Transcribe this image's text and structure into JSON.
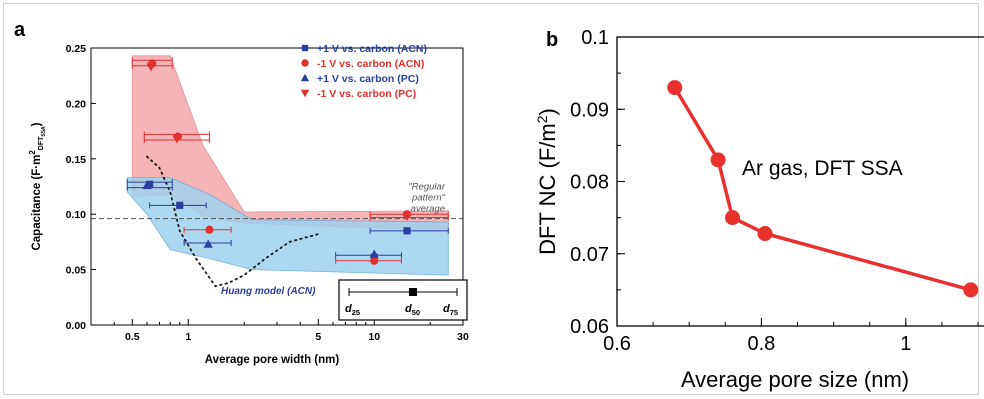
{
  "chart_data": [
    {
      "panel_label": "a",
      "type": "scatter",
      "xlabel": "Average pore width (nm)",
      "ylabel_main": "Capacitance (F·m",
      "ylabel_sup": "2",
      "ylabel_sub": "DFT",
      "ylabel_subsub": "SSA",
      "ylabel_tail": ")",
      "x_scale": "log",
      "xlim": [
        0.3,
        30
      ],
      "ylim": [
        0,
        0.25
      ],
      "x_ticks": [
        0.5,
        1,
        5,
        10,
        30
      ],
      "x_tick_labels": [
        "0.5",
        "1",
        "5",
        "10",
        "30"
      ],
      "y_ticks": [
        0,
        0.05,
        0.1,
        0.15,
        0.2,
        0.25
      ],
      "y_tick_labels": [
        "0.00",
        "0.05",
        "0.10",
        "0.15",
        "0.20",
        "0.25"
      ],
      "legend_position": "top-right",
      "series": [
        {
          "name": "+1 V vs. carbon (ACN)",
          "marker": "square",
          "color": "#2a3f9e",
          "points": [
            {
              "x": 0.62,
              "y": 0.127
            },
            {
              "x": 0.9,
              "y": 0.108
            },
            {
              "x": 10,
              "y": 0.061
            },
            {
              "x": 15,
              "y": 0.085
            }
          ]
        },
        {
          "name": "-1 V vs. carbon (ACN)",
          "marker": "circle",
          "color": "#e03030",
          "points": [
            {
              "x": 0.64,
              "y": 0.236
            },
            {
              "x": 0.88,
              "y": 0.17
            },
            {
              "x": 1.3,
              "y": 0.086
            },
            {
              "x": 10,
              "y": 0.058
            },
            {
              "x": 15,
              "y": 0.1
            }
          ]
        },
        {
          "name": "+1 V vs. carbon (PC)",
          "marker": "triangle-up",
          "color": "#2a3f9e",
          "points": [
            {
              "x": 0.6,
              "y": 0.126
            },
            {
              "x": 1.28,
              "y": 0.073
            },
            {
              "x": 10,
              "y": 0.064
            }
          ]
        },
        {
          "name": "-1 V vs. carbon (PC)",
          "marker": "triangle-down",
          "color": "#e03030",
          "points": [
            {
              "x": 0.63,
              "y": 0.233
            },
            {
              "x": 0.87,
              "y": 0.168
            },
            {
              "x": 15,
              "y": 0.098
            }
          ]
        }
      ],
      "error_bars": [
        {
          "y": 0.239,
          "xmin": 0.5,
          "xmax": 0.82,
          "color": "#e03030"
        },
        {
          "y": 0.234,
          "xmin": 0.5,
          "xmax": 0.82,
          "color": "#e03030"
        },
        {
          "y": 0.172,
          "xmin": 0.58,
          "xmax": 1.3,
          "color": "#e03030"
        },
        {
          "y": 0.167,
          "xmin": 0.58,
          "xmax": 1.3,
          "color": "#e03030"
        },
        {
          "y": 0.129,
          "xmin": 0.47,
          "xmax": 0.82,
          "color": "#2a3f9e"
        },
        {
          "y": 0.124,
          "xmin": 0.47,
          "xmax": 0.82,
          "color": "#2a3f9e"
        },
        {
          "y": 0.108,
          "xmin": 0.62,
          "xmax": 1.25,
          "color": "#2a3f9e"
        },
        {
          "y": 0.086,
          "xmin": 0.95,
          "xmax": 1.7,
          "color": "#e03030"
        },
        {
          "y": 0.074,
          "xmin": 0.95,
          "xmax": 1.7,
          "color": "#2a3f9e"
        },
        {
          "y": 0.063,
          "xmin": 6.2,
          "xmax": 14,
          "color": "#2a3f9e"
        },
        {
          "y": 0.058,
          "xmin": 6.2,
          "xmax": 14,
          "color": "#e03030"
        },
        {
          "y": 0.1,
          "xmin": 9.5,
          "xmax": 25,
          "color": "#e03030"
        },
        {
          "y": 0.097,
          "xmin": 9.5,
          "xmax": 25,
          "color": "#e03030"
        },
        {
          "y": 0.085,
          "xmin": 9.5,
          "xmax": 25,
          "color": "#2a3f9e"
        }
      ],
      "red_band": [
        [
          0.5,
          0.243
        ],
        [
          0.8,
          0.243
        ],
        [
          1.2,
          0.162
        ],
        [
          2.0,
          0.102
        ],
        [
          25,
          0.103
        ],
        [
          25,
          0.085
        ],
        [
          2.0,
          0.092
        ],
        [
          1.2,
          0.098
        ],
        [
          0.8,
          0.118
        ],
        [
          0.5,
          0.116
        ]
      ],
      "blue_band": [
        [
          0.47,
          0.133
        ],
        [
          0.8,
          0.133
        ],
        [
          1.3,
          0.118
        ],
        [
          2.2,
          0.095
        ],
        [
          25,
          0.093
        ],
        [
          25,
          0.045
        ],
        [
          2.2,
          0.05
        ],
        [
          1.3,
          0.06
        ],
        [
          0.8,
          0.068
        ],
        [
          0.6,
          0.1
        ],
        [
          0.47,
          0.12
        ]
      ],
      "regular_pattern_y": 0.096,
      "regular_pattern_label": [
        "\"Regular",
        "pattern\"",
        "average"
      ],
      "huang_curve": [
        [
          0.6,
          0.152
        ],
        [
          0.7,
          0.142
        ],
        [
          0.8,
          0.12
        ],
        [
          0.9,
          0.085
        ],
        [
          1.1,
          0.06
        ],
        [
          1.4,
          0.035
        ],
        [
          1.65,
          0.038
        ],
        [
          2.0,
          0.045
        ],
        [
          2.6,
          0.06
        ],
        [
          3.5,
          0.075
        ],
        [
          5,
          0.082
        ]
      ],
      "huang_label": "Huang model (ACN)",
      "inset": {
        "d25": "d",
        "d25_sub": "25",
        "d50": "d",
        "d50_sub": "50",
        "d75": "d",
        "d75_sub": "75"
      },
      "colors": {
        "red_fill": "#f4a7ab",
        "blue_fill": "#9fd2ef",
        "red": "#e03030",
        "blue": "#2a3f9e"
      }
    },
    {
      "panel_label": "b",
      "type": "line",
      "xlabel": "Average pore size (nm)",
      "ylabel_main": "DFT NC (F/m",
      "ylabel_sup": "2",
      "ylabel_tail": ")",
      "annotation": "Ar gas, DFT SSA",
      "xlim": [
        0.6,
        1.1
      ],
      "ylim": [
        0.06,
        0.1
      ],
      "x_ticks": [
        0.6,
        0.8,
        1.0
      ],
      "x_tick_labels": [
        "0.6",
        "0.8",
        "1"
      ],
      "y_ticks": [
        0.06,
        0.07,
        0.08,
        0.09,
        0.1
      ],
      "y_tick_labels": [
        "0.06",
        "0.07",
        "0.08",
        "0.09",
        "0.1"
      ],
      "x": [
        0.68,
        0.74,
        0.76,
        0.805,
        1.09
      ],
      "y": [
        0.093,
        0.083,
        0.075,
        0.0728,
        0.065
      ],
      "color": "#e8312f"
    }
  ]
}
